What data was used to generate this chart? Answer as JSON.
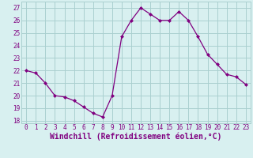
{
  "x": [
    0,
    1,
    2,
    3,
    4,
    5,
    6,
    7,
    8,
    9,
    10,
    11,
    12,
    13,
    14,
    15,
    16,
    17,
    18,
    19,
    20,
    21,
    22,
    23
  ],
  "y": [
    22,
    21.8,
    21,
    20,
    19.9,
    19.6,
    19.1,
    18.6,
    18.3,
    20,
    24.7,
    26,
    27,
    26.5,
    26,
    26,
    26.7,
    26,
    24.7,
    23.3,
    22.5,
    21.7,
    21.5,
    20.9
  ],
  "line_color": "#800080",
  "marker": "D",
  "marker_size": 2.0,
  "bg_color": "#d8f0f0",
  "grid_color": "#aacfcf",
  "xlabel": "Windchill (Refroidissement éolien,°C)",
  "xlabel_color": "#800080",
  "ylim": [
    17.8,
    27.5
  ],
  "xlim": [
    -0.5,
    23.5
  ],
  "yticks": [
    18,
    19,
    20,
    21,
    22,
    23,
    24,
    25,
    26,
    27
  ],
  "xticks": [
    0,
    1,
    2,
    3,
    4,
    5,
    6,
    7,
    8,
    9,
    10,
    11,
    12,
    13,
    14,
    15,
    16,
    17,
    18,
    19,
    20,
    21,
    22,
    23
  ],
  "tick_label_color": "#800080",
  "tick_label_fontsize": 5.5,
  "xlabel_fontsize": 7.0,
  "linewidth": 0.9
}
